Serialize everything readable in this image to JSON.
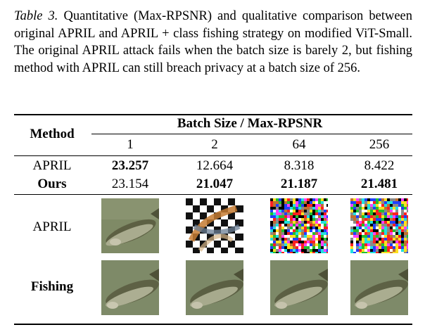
{
  "caption": {
    "label": "Table 3.",
    "text": "Quantitative (Max-RPSNR) and qualitative comparison between original APRIL and APRIL + class fishing strategy on modified ViT-Small. The original APRIL attack fails when the batch size is barely 2, but fishing method with APRIL can still breach privacy at a batch size of 256."
  },
  "table": {
    "method_header": "Method",
    "group_header": "Batch Size / Max-RPSNR",
    "batch_sizes": [
      "1",
      "2",
      "64",
      "256"
    ],
    "rows": [
      {
        "method": "APRIL",
        "values": [
          "23.257",
          "12.664",
          "8.318",
          "8.422"
        ],
        "bold": [
          true,
          false,
          false,
          false
        ]
      },
      {
        "method": "Ours",
        "method_bold": true,
        "values": [
          "23.154",
          "21.047",
          "21.187",
          "21.481"
        ],
        "bold": [
          false,
          true,
          true,
          true
        ]
      }
    ],
    "image_rows": [
      {
        "method": "APRIL",
        "images": [
          "fish-clean-reconstruction",
          "checkerboard-noisy-fish",
          "color-noise",
          "color-noise"
        ]
      },
      {
        "method": "Fishing",
        "method_bold": true,
        "images": [
          "fish-clean-reconstruction",
          "fish-clean-reconstruction",
          "fish-clean-reconstruction",
          "fish-clean-reconstruction"
        ]
      }
    ]
  }
}
